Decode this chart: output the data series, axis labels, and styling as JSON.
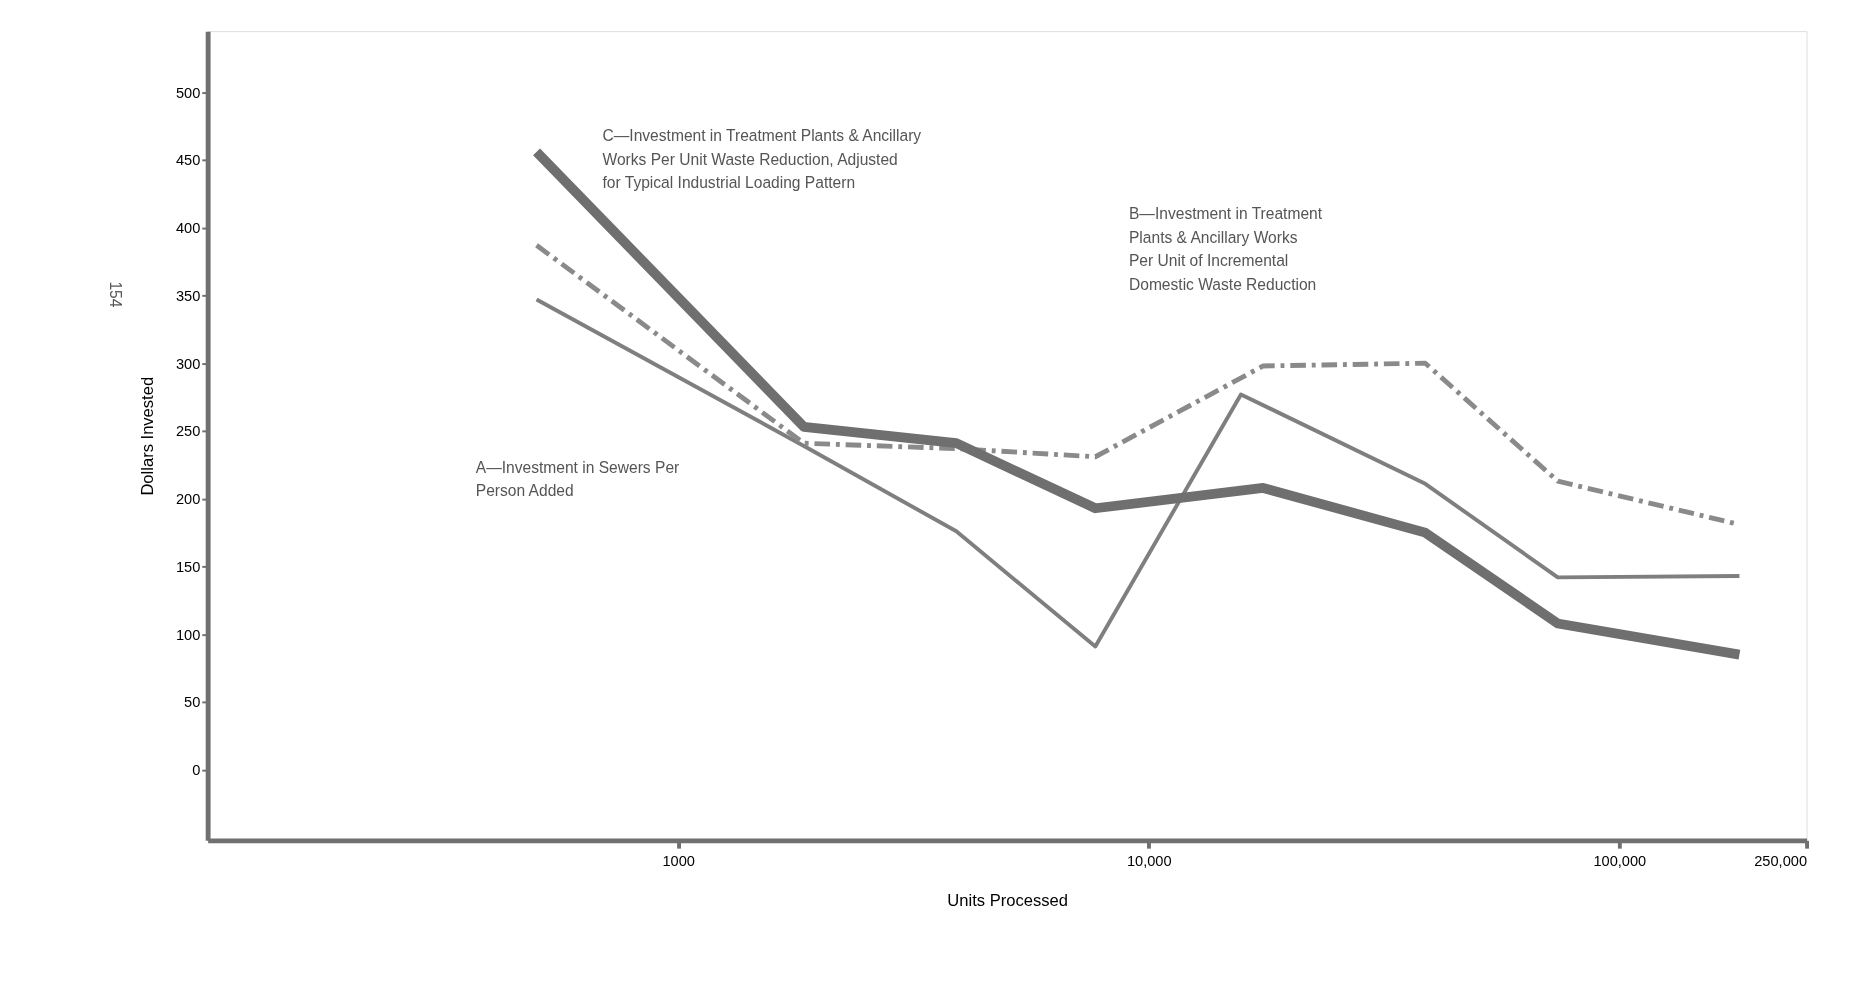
{
  "chart_data": {
    "type": "line",
    "xlabel": "Units  Processed",
    "ylabel": "Dollars  Invested",
    "log": "x",
    "xlim": [
      100,
      250000
    ],
    "ylim": [
      -52,
      545
    ],
    "xticks": [
      {
        "value": 1000,
        "label": "1000"
      },
      {
        "value": 10000,
        "label": "10,000"
      },
      {
        "value": 100000,
        "label": "100,000"
      },
      {
        "value": 250000,
        "label": "250,000"
      }
    ],
    "yticks": [
      0,
      50,
      100,
      150,
      200,
      250,
      300,
      350,
      400,
      450,
      500
    ],
    "grid": false,
    "series": [
      {
        "color": "#7f7f7f",
        "line_style": "solid",
        "x": [
          500,
          1850,
          3900,
          7700,
          15700,
          38700,
          74000,
          180000
        ],
        "values": [
          347,
          239,
          176,
          91,
          277,
          211,
          142,
          143
        ]
      },
      {
        "color": "#8a8a8a",
        "line_style": "dashed",
        "x": [
          500,
          1850,
          3900,
          7700,
          17500,
          38700,
          74000,
          180000
        ],
        "values": [
          387,
          241,
          237,
          231,
          298,
          300,
          213,
          181
        ]
      },
      {
        "color": "#6f6f6f",
        "line_style": "solid",
        "x": [
          500,
          1850,
          3900,
          7700,
          17500,
          38700,
          74000,
          180000
        ],
        "values": [
          456,
          253,
          241,
          193,
          208,
          175,
          108,
          85
        ]
      }
    ],
    "annotations": [
      "C—Investment in Treatment Plants & Ancillary\n     Works Per Unit Waste Reduction, Adjusted\n     for Typical Industrial Loading Pattern",
      "B—Investment in Treatment\n     Plants & Ancillary Works\n     Per Unit of Incremental\n     Domestic Waste Reduction",
      "A—Investment in Sewers Per\n     Person Added",
      "154"
    ]
  }
}
